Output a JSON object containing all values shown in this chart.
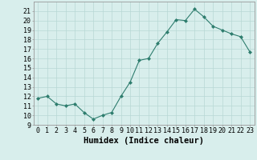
{
  "x": [
    0,
    1,
    2,
    3,
    4,
    5,
    6,
    7,
    8,
    9,
    10,
    11,
    12,
    13,
    14,
    15,
    16,
    17,
    18,
    19,
    20,
    21,
    22,
    23
  ],
  "y": [
    11.8,
    12.0,
    11.2,
    11.0,
    11.2,
    10.3,
    9.6,
    10.0,
    10.3,
    12.0,
    13.5,
    15.8,
    16.0,
    17.6,
    18.8,
    20.1,
    20.0,
    21.2,
    20.4,
    19.4,
    19.0,
    18.6,
    18.3,
    16.7
  ],
  "line_color": "#2e7d6e",
  "marker": "D",
  "marker_size": 2.0,
  "bg_color": "#d8eeec",
  "grid_color": "#b8d8d4",
  "xlabel": "Humidex (Indice chaleur)",
  "ylim": [
    9,
    22
  ],
  "xlim": [
    -0.5,
    23.5
  ],
  "yticks": [
    9,
    10,
    11,
    12,
    13,
    14,
    15,
    16,
    17,
    18,
    19,
    20,
    21
  ],
  "xticks": [
    0,
    1,
    2,
    3,
    4,
    5,
    6,
    7,
    8,
    9,
    10,
    11,
    12,
    13,
    14,
    15,
    16,
    17,
    18,
    19,
    20,
    21,
    22,
    23
  ],
  "xlabel_fontsize": 7.5,
  "tick_fontsize": 6.0
}
